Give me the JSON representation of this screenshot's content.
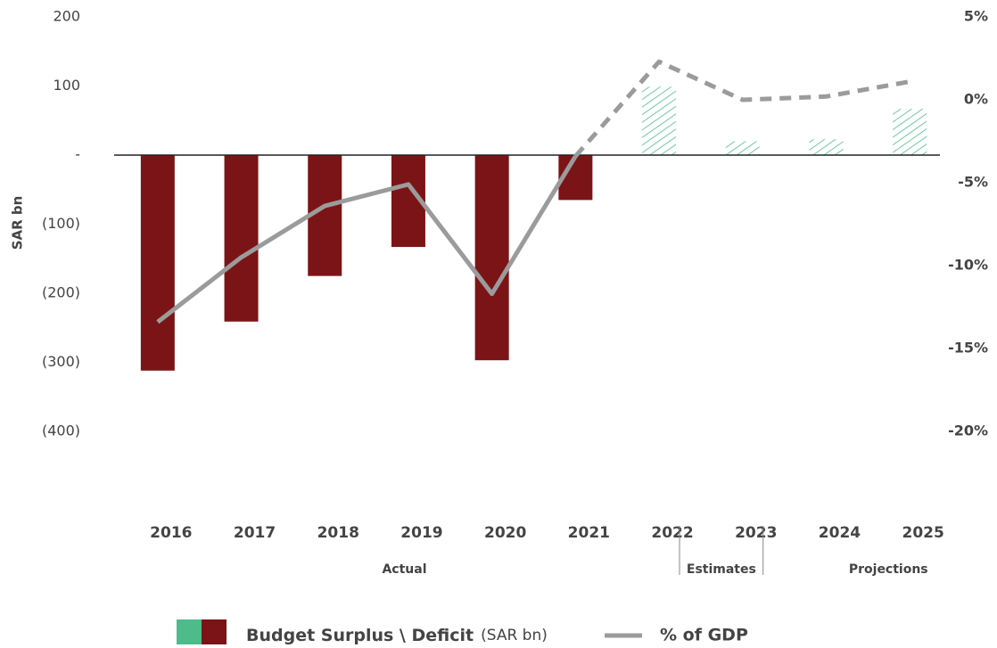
{
  "chart_data": {
    "type": "bar-line",
    "y_label": "SAR bn",
    "categories": [
      "2016",
      "2017",
      "2018",
      "2019",
      "2020",
      "2021",
      "2022",
      "2023",
      "2024",
      "2025"
    ],
    "groups": [
      {
        "label": "Actual",
        "from": "2016",
        "to": "2021",
        "style": "solid"
      },
      {
        "label": "Estimates",
        "from": "2022",
        "to": "2022",
        "style": "hatched"
      },
      {
        "label": "Projections",
        "from": "2023",
        "to": "2025",
        "style": "hatched"
      }
    ],
    "series": [
      {
        "name": "Budget Surplus \\ Deficit",
        "unit": "(SAR bn)",
        "type": "bar",
        "color": "#7b1416",
        "alt_color": "#4dbb8a",
        "values": [
          -312,
          -241,
          -175,
          -133,
          -297,
          -65,
          99,
          20,
          23,
          67
        ]
      },
      {
        "name": "% of GDP",
        "type": "line",
        "axis": "y2",
        "color": "#9b9b9b",
        "values": [
          -13.4,
          -9.5,
          -6.4,
          -5.1,
          -11.7,
          -3.4,
          2.3,
          0,
          0.2,
          1.1
        ]
      }
    ],
    "ylim": [
      -400,
      200
    ],
    "yticks": [
      200,
      100,
      {
        "value": 0,
        "label": "-"
      },
      {
        "value": -100,
        "label": "(100)"
      },
      {
        "value": -200,
        "label": "(200)"
      },
      {
        "value": -300,
        "label": "(300)"
      },
      {
        "value": -400,
        "label": "(400)"
      }
    ],
    "y2lim": [
      -20,
      5
    ],
    "y2ticks": [
      {
        "value": 5,
        "label": "5%"
      },
      {
        "value": 0,
        "label": "0%"
      },
      {
        "value": -5,
        "label": "-5%"
      },
      {
        "value": -10,
        "label": "-10%"
      },
      {
        "value": -15,
        "label": "-15%"
      },
      {
        "value": -20,
        "label": "-20%"
      }
    ]
  }
}
